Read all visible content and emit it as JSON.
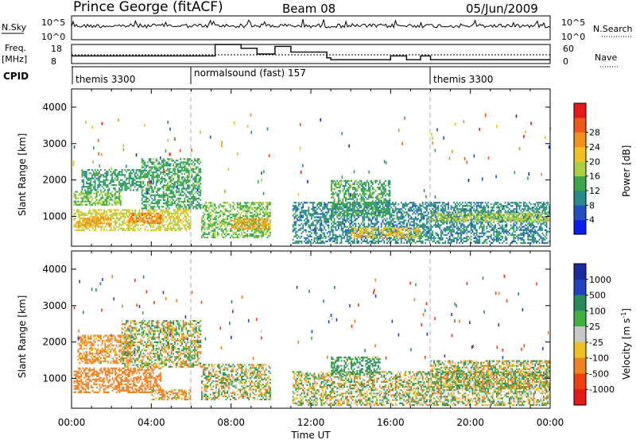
{
  "header": {
    "station": "Prince George (fitACF)",
    "beam": "Beam 08",
    "date": "05/Jun/2009"
  },
  "meta_panels": {
    "nsky_label": "N.Sky",
    "nsky_ticks": [
      "10^5",
      "10^0"
    ],
    "nsearch_label": "N.Search",
    "nsearch_ticks": [
      "10^5",
      "10^0"
    ],
    "freq_label": "Freq.",
    "freq_unit": "[MHz]",
    "freq_ticks": [
      "18",
      "8"
    ],
    "nave_label": "Nave",
    "nave_ticks": [
      "60",
      "0"
    ],
    "cpid_label": "CPID",
    "cpid_segments": [
      {
        "label": "themis 3300",
        "start_hour": 0,
        "end_hour": 6
      },
      {
        "label": "normalsound (fast) 157",
        "start_hour": 6,
        "end_hour": 18
      },
      {
        "label": "themis 3300",
        "start_hour": 18,
        "end_hour": 24
      }
    ]
  },
  "axes": {
    "x_label": "Time UT",
    "x_ticks": [
      "00:00",
      "04:00",
      "08:00",
      "12:00",
      "16:00",
      "20:00",
      "00:00"
    ],
    "y_label": "Slant Range [km]",
    "y_ticks": [
      "1000",
      "2000",
      "3000",
      "4000"
    ]
  },
  "power_colorbar": {
    "label": "Power [dB]",
    "ticks": [
      "4",
      "8",
      "12",
      "16",
      "20",
      "24",
      "28"
    ],
    "colors": [
      "#0a1ef0",
      "#1f4fc0",
      "#2a8a8a",
      "#3aa84a",
      "#a8d040",
      "#f0c020",
      "#f09018",
      "#f05818",
      "#e81818"
    ]
  },
  "velocity_colorbar": {
    "label": "Velocity [m s",
    "label_sup": "-1",
    "label_end": "]",
    "ticks": [
      "1000",
      "500",
      "100",
      "25",
      "-25",
      "-100",
      "-500",
      "-1000"
    ],
    "colors": [
      "#1a2aa0",
      "#2040c0",
      "#2a8a5a",
      "#40b040",
      "#c8c8c8",
      "#f0c020",
      "#f08020",
      "#f04010",
      "#e81818"
    ]
  },
  "chart_data": [
    {
      "type": "heatmap",
      "panel": "power",
      "x_range_hours": [
        0,
        24
      ],
      "ylim": [
        180,
        4500
      ],
      "ylabel": "Slant Range [km]",
      "xlabel": "Time UT",
      "colorbar": "Power [dB]",
      "clim": [
        0,
        30
      ],
      "dashed_vertical_lines_hours": [
        6,
        18
      ],
      "data_gap_hours": [
        10,
        11
      ],
      "regions": [
        {
          "t0": 0.1,
          "t1": 6.0,
          "r0": 600,
          "r1": 1200,
          "val": 18
        },
        {
          "t0": 0.1,
          "t1": 2.5,
          "r0": 1300,
          "r1": 1700,
          "val": 14
        },
        {
          "t0": 0.5,
          "t1": 3.5,
          "r0": 1700,
          "r1": 2300,
          "val": 11
        },
        {
          "t0": 3.5,
          "t1": 6.5,
          "r0": 1200,
          "r1": 2600,
          "val": 12
        },
        {
          "t0": 0.3,
          "t1": 2.0,
          "r0": 700,
          "r1": 1000,
          "val": 22
        },
        {
          "t0": 2.8,
          "t1": 4.5,
          "r0": 800,
          "r1": 1100,
          "val": 24
        },
        {
          "t0": 6.5,
          "t1": 10.0,
          "r0": 400,
          "r1": 1400,
          "val": 14
        },
        {
          "t0": 8.0,
          "t1": 10.0,
          "r0": 650,
          "r1": 950,
          "val": 22
        },
        {
          "t0": 11.0,
          "t1": 24.0,
          "r0": 250,
          "r1": 1400,
          "val": 9
        },
        {
          "t0": 13.0,
          "t1": 16.0,
          "r0": 1000,
          "r1": 2000,
          "val": 12
        },
        {
          "t0": 14.0,
          "t1": 17.5,
          "r0": 400,
          "r1": 700,
          "val": 20
        },
        {
          "t0": 18.0,
          "t1": 24.0,
          "r0": 850,
          "r1": 1100,
          "val": 16
        }
      ]
    },
    {
      "type": "heatmap",
      "panel": "velocity",
      "x_range_hours": [
        0,
        24
      ],
      "ylim": [
        180,
        4500
      ],
      "ylabel": "Slant Range [km]",
      "xlabel": "Time UT",
      "colorbar": "Velocity [m s-1]",
      "clim": [
        -1000,
        1000
      ],
      "dashed_vertical_lines_hours": [
        6,
        18
      ],
      "data_gap_hours": [
        10,
        11
      ],
      "regions": [
        {
          "t0": 0.1,
          "t1": 4.5,
          "r0": 600,
          "r1": 1300,
          "val": -300
        },
        {
          "t0": 0.3,
          "t1": 3.0,
          "r0": 1400,
          "r1": 2200,
          "val": -150
        },
        {
          "t0": 2.5,
          "t1": 6.5,
          "r0": 1300,
          "r1": 2600,
          "val": 0
        },
        {
          "t0": 4.0,
          "t1": 6.0,
          "r0": 400,
          "r1": 700,
          "val": -120
        },
        {
          "t0": 6.5,
          "t1": 10.0,
          "r0": 400,
          "r1": 1400,
          "val": 0
        },
        {
          "t0": 11.0,
          "t1": 24.0,
          "r0": 250,
          "r1": 1200,
          "val": 0
        },
        {
          "t0": 13.0,
          "t1": 15.5,
          "r0": 1100,
          "r1": 1600,
          "val": 150
        },
        {
          "t0": 18.0,
          "t1": 24.0,
          "r0": 700,
          "r1": 1500,
          "val": 0
        }
      ]
    }
  ]
}
